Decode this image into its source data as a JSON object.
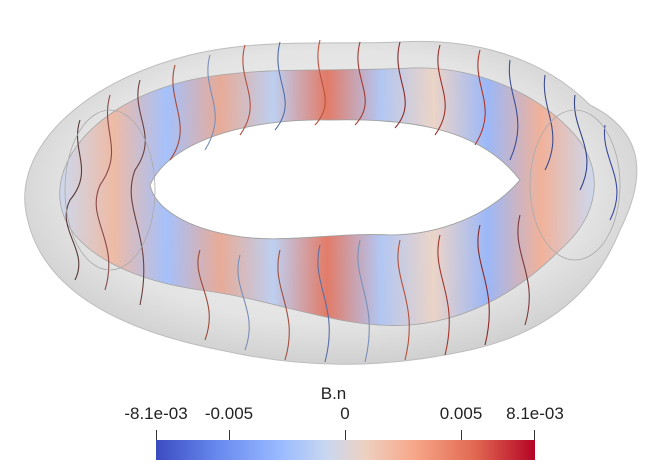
{
  "colorbar": {
    "title": "B.n",
    "ticks": [
      "-8.1e-03",
      "-0.005",
      "0",
      "0.005",
      "8.1e-03"
    ]
  },
  "colors": {
    "low": "#3b4cc0",
    "mid": "#dddddd",
    "high": "#b40426",
    "surface": "#e9e9e9"
  }
}
